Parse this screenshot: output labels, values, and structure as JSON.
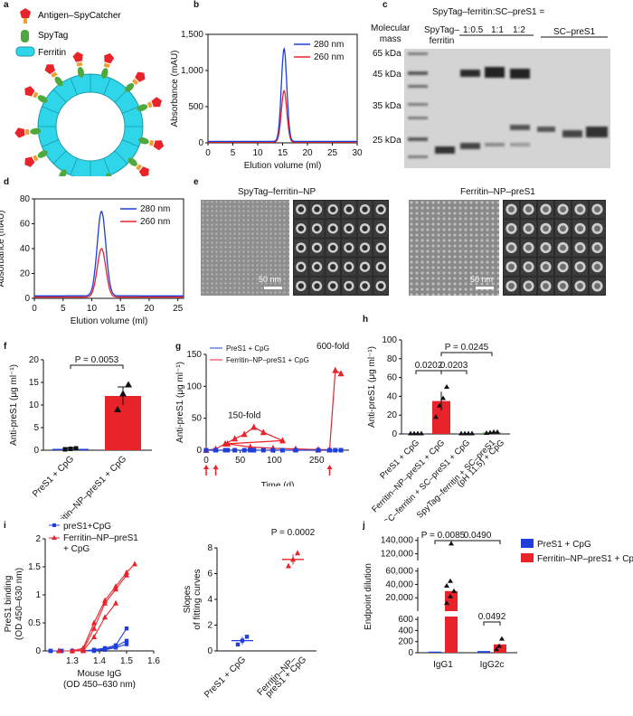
{
  "panel_labels": [
    "a",
    "b",
    "c",
    "d",
    "e",
    "f",
    "g",
    "h",
    "i",
    "j"
  ],
  "panel_a": {
    "legend": [
      {
        "label": "Antigen–SpyCatcher",
        "color": "#e8232a"
      },
      {
        "label": "SpyTag",
        "color": "#4fa83d"
      },
      {
        "label": "Ferritin",
        "color": "#2fd5e8"
      }
    ]
  },
  "panel_c": {
    "header": "SpyTag–ferritin:SC–preS1 =",
    "mass_title": "Molecular mass",
    "mass_title_lines": [
      "Molecular",
      "mass"
    ],
    "lane_label_spytag": "SpyTag–ferritin",
    "lane_label_spytag_lines": [
      "SpyTag–",
      "ferritin"
    ],
    "ratios": [
      "1:0.5",
      "1:1",
      "1:2"
    ],
    "lane_label_sc": "SC–preS1",
    "mass_markers": [
      "65 kDa",
      "45 kDa",
      "35 kDa",
      "25 kDa"
    ]
  },
  "panel_e": {
    "title_left": "SpyTag–ferritin–NP",
    "title_right": "Ferritin–NP–preS1",
    "scale_bar": "50 nm"
  },
  "colors": {
    "blue": "#1f3fd8",
    "red": "#e8232a",
    "ferritin": "#2fd5e8",
    "green": "#4fa83d"
  },
  "chart_data": [
    {
      "id": "b",
      "type": "line",
      "title": "",
      "xlabel": "Elution volume (ml)",
      "ylabel": "Absorbance (mAU)",
      "xlim": [
        0,
        30
      ],
      "ylim": [
        0,
        1500
      ],
      "xticks": [
        0,
        5,
        10,
        15,
        20,
        25,
        30
      ],
      "yticks": [
        0,
        500,
        1000,
        1500
      ],
      "ytick_labels": [
        "0",
        "500",
        "1,000",
        "1,500"
      ],
      "series": [
        {
          "name": "280 nm",
          "color": "#1f3fd8",
          "peak_x": 15.3,
          "peak_y": 1300,
          "width": 0.55,
          "baseline": 20
        },
        {
          "name": "260 nm",
          "color": "#e8232a",
          "peak_x": 15.3,
          "peak_y": 720,
          "width": 0.55,
          "baseline": 10
        }
      ]
    },
    {
      "id": "d",
      "type": "line",
      "title": "",
      "xlabel": "Elution volume (ml)",
      "ylabel": "Absorbance (mAU)",
      "xlim": [
        0,
        26
      ],
      "ylim": [
        0,
        80
      ],
      "xticks": [
        0,
        5,
        10,
        15,
        20,
        25
      ],
      "yticks": [
        0,
        20,
        40,
        60,
        80
      ],
      "ytick_labels": [
        "0",
        "20",
        "40",
        "60",
        "80"
      ],
      "series": [
        {
          "name": "280 nm",
          "color": "#1f3fd8",
          "peak_x": 11.7,
          "peak_y": 70,
          "width": 0.75,
          "baseline": 2
        },
        {
          "name": "260 nm",
          "color": "#e8232a",
          "peak_x": 11.7,
          "peak_y": 40,
          "width": 0.75,
          "baseline": 1
        }
      ]
    },
    {
      "id": "f",
      "type": "bar",
      "ylabel": "Anti-preS1 (μg ml⁻¹)",
      "ylim": [
        0,
        20
      ],
      "yticks": [
        0,
        5,
        10,
        15,
        20
      ],
      "categories": [
        "PreS1 + CpG",
        "Ferritin–NP–preS1 + CpG"
      ],
      "values": [
        0.3,
        12
      ],
      "errors": [
        0.2,
        2
      ],
      "points": [
        [
          0.2,
          0.3,
          0.4
        ],
        [
          9,
          12.5,
          14.5
        ]
      ],
      "colors": [
        "#1f3fd8",
        "#e8232a"
      ],
      "annotations": [
        {
          "label": "P = 0.0053",
          "from": 0,
          "to": 1
        }
      ]
    },
    {
      "id": "g",
      "type": "line",
      "xlabel": "Time (d)",
      "ylabel": "Anti-preS1 (μg ml⁻¹)",
      "xlim": [
        0,
        290
      ],
      "ylim": [
        0,
        150
      ],
      "xticks": [
        0,
        50,
        100,
        250
      ],
      "yticks": [
        0,
        50,
        100,
        150
      ],
      "series": [
        {
          "name": "PreS1 + CpG",
          "color": "#1f3fd8",
          "marker": "square",
          "x": [
            0,
            14,
            28,
            42,
            56,
            70,
            84,
            112,
            140,
            168,
            196,
            224,
            252,
            266,
            273,
            280
          ],
          "y": [
            0,
            0,
            0,
            0,
            0,
            0,
            0,
            0,
            0,
            0,
            0,
            0,
            0,
            0,
            0,
            0
          ]
        },
        {
          "name": "Ferritin–NP–preS1 + CpG",
          "color": "#e8232a",
          "marker": "triangle",
          "x": [
            0,
            14,
            28,
            42,
            56,
            70,
            84,
            112,
            140,
            168,
            196,
            224,
            252,
            266,
            273,
            280
          ],
          "y": [
            0,
            2,
            10,
            18,
            25,
            36,
            28,
            15,
            10,
            5,
            3,
            2,
            1,
            1,
            125,
            120
          ]
        }
      ],
      "annotations": [
        {
          "label": "150-fold"
        },
        {
          "label": "600-fold"
        }
      ],
      "immunization_days": [
        0,
        14,
        266
      ]
    },
    {
      "id": "h",
      "type": "bar",
      "ylabel": "Anti-preS1 (μg ml⁻¹)",
      "ylim": [
        0,
        100
      ],
      "yticks": [
        0,
        20,
        40,
        60,
        80,
        100
      ],
      "categories": [
        "PreS1 + CpG",
        "Ferritin–NP–preS1 + CpG",
        "SC–ferritin + SC–preS1 + CpG",
        "SpyTag–ferritin + SC–preS1 (pH 11.5) + CpG"
      ],
      "category_lines": [
        [
          "PreS1 + CpG"
        ],
        [
          "Ferritin–NP–preS1 + CpG"
        ],
        [
          "SC–ferritin + SC–preS1 + CpG"
        ],
        [
          "SpyTag–ferritin + SC–preS1",
          "(pH 11.5) + CpG"
        ]
      ],
      "values": [
        0.5,
        35,
        0.5,
        1.5
      ],
      "errors": [
        0.3,
        10,
        0.3,
        0.5
      ],
      "colors": [
        "#1f3fd8",
        "#e8232a",
        "#1f3fd8",
        "#4fa83d"
      ],
      "points": [
        [
          0.5,
          0.5,
          0.5,
          0.5
        ],
        [
          18,
          30,
          38,
          50
        ],
        [
          0.5,
          0.5,
          0.5,
          0.5
        ],
        [
          1,
          1.5,
          2,
          2
        ]
      ],
      "annotations": [
        {
          "label": "0.0202",
          "from": 0,
          "to": 1
        },
        {
          "label": "0.0203",
          "from": 1,
          "to": 2
        },
        {
          "label": "P = 0.0245",
          "from": 1,
          "to": 3
        }
      ]
    },
    {
      "id": "i1",
      "type": "line",
      "xlabel": "Mouse IgG (OD 450–630 nm)",
      "xlabel_lines": [
        "Mouse IgG",
        "(OD 450–630 nm)"
      ],
      "ylabel": "PreS1 binding (OD 450–630 nm)",
      "ylabel_lines": [
        "PreS1 binding",
        "(OD 450–630 nm)"
      ],
      "xlim": [
        1.2,
        1.6
      ],
      "ylim": [
        0,
        2.0
      ],
      "xticks": [
        1.3,
        1.4,
        1.5,
        1.6
      ],
      "yticks": [
        0,
        0.5,
        1.0,
        1.5,
        2.0
      ],
      "legend": [
        "preS1+CpG",
        "Ferritin–NP–preS1 + CpG"
      ],
      "legend_lines": [
        [
          "preS1+CpG"
        ],
        [
          "Ferritin–NP–preS1",
          "+ CpG"
        ]
      ],
      "series": [
        {
          "name": "preS1+CpG",
          "color": "#1f3fd8",
          "marker": "square",
          "x": [
            1.22,
            1.26,
            1.3,
            1.34,
            1.38,
            1.42,
            1.46,
            1.5
          ],
          "y": [
            0,
            0,
            0,
            0,
            0.02,
            0.05,
            0.1,
            0.4
          ]
        },
        {
          "name": "preS1+CpG",
          "color": "#1f3fd8",
          "marker": "square",
          "x": [
            1.22,
            1.26,
            1.3,
            1.34,
            1.38,
            1.42,
            1.46,
            1.5
          ],
          "y": [
            0,
            0,
            0,
            0,
            0.01,
            0.03,
            0.08,
            0.18
          ]
        },
        {
          "name": "preS1+CpG",
          "color": "#1f3fd8",
          "marker": "square",
          "x": [
            1.22,
            1.26,
            1.3,
            1.34,
            1.38,
            1.42,
            1.46,
            1.5
          ],
          "y": [
            0,
            0,
            0,
            0,
            0,
            0.02,
            0.06,
            0.12
          ]
        },
        {
          "name": "Ferritin–NP–preS1 + CpG",
          "color": "#e8232a",
          "marker": "triangle",
          "x": [
            1.25,
            1.3,
            1.34,
            1.38,
            1.42,
            1.46,
            1.5,
            1.53
          ],
          "y": [
            0,
            0,
            0.05,
            0.5,
            0.9,
            1.15,
            1.4,
            1.55
          ]
        },
        {
          "name": "Ferritin–NP–preS1 + CpG",
          "color": "#e8232a",
          "marker": "triangle",
          "x": [
            1.25,
            1.3,
            1.34,
            1.38,
            1.42,
            1.46,
            1.5
          ],
          "y": [
            0,
            0,
            0.02,
            0.4,
            0.85,
            1.1,
            1.35
          ]
        },
        {
          "name": "Ferritin–NP–preS1 + CpG",
          "color": "#e8232a",
          "marker": "triangle",
          "x": [
            1.25,
            1.3,
            1.34,
            1.38,
            1.42,
            1.46
          ],
          "y": [
            0,
            0,
            0,
            0.25,
            0.6,
            0.85
          ]
        }
      ]
    },
    {
      "id": "i2",
      "type": "scatter",
      "ylabel": "Slopes of fitting curves",
      "ylabel_lines": [
        "Slopes",
        "of fitting curves"
      ],
      "ylim": [
        0,
        8
      ],
      "yticks": [
        0,
        2,
        4,
        6,
        8
      ],
      "categories": [
        "PreS1 + CpG",
        "Ferritin–NP–preS1 + CpG"
      ],
      "category_lines": [
        [
          "PreS1 + CpG"
        ],
        [
          "Ferritin–NP–",
          "preS1 + CpG"
        ]
      ],
      "means": [
        0.8,
        7.1
      ],
      "errors": [
        0.3,
        0.4
      ],
      "points": [
        [
          0.5,
          0.8,
          1.1
        ],
        [
          6.6,
          7.1,
          7.6
        ]
      ],
      "colors": [
        "#1f3fd8",
        "#e8232a"
      ],
      "annotations": [
        {
          "label": "P = 0.0002"
        }
      ]
    },
    {
      "id": "j",
      "type": "bar",
      "ylabel": "Endpoint dilution",
      "categories": [
        "IgG1",
        "IgG2c"
      ],
      "yticks_upper": [
        20000,
        40000,
        60000
      ],
      "ytick_labels_upper": [
        "20,000",
        "40,000",
        "60,000"
      ],
      "yticks_top": [
        120000,
        140000
      ],
      "ytick_labels_top": [
        "120,000",
        "140,000"
      ],
      "yticks_lower": [
        0,
        200,
        400,
        600
      ],
      "ytick_labels_lower": [
        "0",
        "200",
        "400",
        "600"
      ],
      "legend": [
        "PreS1 + CpG",
        "Ferritin–NP–preS1 + CpG"
      ],
      "series": [
        {
          "name": "PreS1 + CpG",
          "color": "#1f3fd8",
          "values": [
            20,
            30
          ]
        },
        {
          "name": "Ferritin–NP–preS1 + CpG",
          "color": "#e8232a",
          "values": [
            30000,
            150
          ]
        }
      ],
      "annotations": [
        {
          "label": "P = 0.0085"
        },
        {
          "label": "0.0490"
        },
        {
          "label": "0.0492"
        }
      ]
    }
  ]
}
